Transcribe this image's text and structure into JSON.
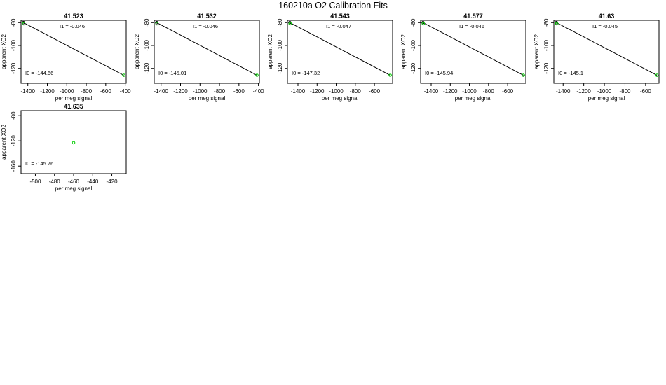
{
  "figure_title": "160210a   O2 Calibration Fits",
  "chart_data": [
    {
      "type": "scatter",
      "title": "41.523",
      "xlabel": "per meg signal",
      "ylabel": "apparent XO2",
      "xlim": [
        -1470,
        -390
      ],
      "ylim": [
        -133,
        -78
      ],
      "xticks": [
        -1400,
        -1200,
        -1000,
        -800,
        -600,
        -400
      ],
      "yticks": [
        -80,
        -100,
        -120
      ],
      "points": [
        {
          "x": -1445,
          "y": -80,
          "color": "#000000"
        },
        {
          "x": -1442,
          "y": -81,
          "color": "#00cc00"
        },
        {
          "x": -415,
          "y": -126,
          "color": "#00cc00"
        }
      ],
      "fit_line": {
        "x": [
          -1445,
          -415
        ],
        "y": [
          -80,
          -126
        ]
      },
      "annotations": {
        "i1": "I1 =  -0.046",
        "i0": "I0 =  -144.66"
      }
    },
    {
      "type": "scatter",
      "title": "41.532",
      "xlabel": "per meg signal",
      "ylabel": "apparent XO2",
      "xlim": [
        -1470,
        -390
      ],
      "ylim": [
        -133,
        -78
      ],
      "xticks": [
        -1400,
        -1200,
        -1000,
        -800,
        -600,
        -400
      ],
      "yticks": [
        -80,
        -100,
        -120
      ],
      "points": [
        {
          "x": -1445,
          "y": -80,
          "color": "#000000"
        },
        {
          "x": -1442,
          "y": -81,
          "color": "#00cc00"
        },
        {
          "x": -415,
          "y": -126,
          "color": "#00cc00"
        }
      ],
      "fit_line": {
        "x": [
          -1445,
          -415
        ],
        "y": [
          -80,
          -126
        ]
      },
      "annotations": {
        "i1": "I1 =  -0.046",
        "i0": "I0 =  -145.01"
      }
    },
    {
      "type": "scatter",
      "title": "41.543",
      "xlabel": "per meg signal",
      "ylabel": "apparent XO2",
      "xlim": [
        -1510,
        -410
      ],
      "ylim": [
        -133,
        -78
      ],
      "xticks": [
        -1400,
        -1200,
        -1000,
        -800,
        -600
      ],
      "yticks": [
        -80,
        -100,
        -120
      ],
      "points": [
        {
          "x": -1485,
          "y": -80,
          "color": "#000000"
        },
        {
          "x": -1482,
          "y": -81,
          "color": "#00cc00"
        },
        {
          "x": -435,
          "y": -126,
          "color": "#00cc00"
        }
      ],
      "fit_line": {
        "x": [
          -1485,
          -435
        ],
        "y": [
          -80,
          -126
        ]
      },
      "annotations": {
        "i1": "I1 =  -0.047",
        "i0": "I0 =  -147.32"
      }
    },
    {
      "type": "scatter",
      "title": "41.577",
      "xlabel": "per meg signal",
      "ylabel": "apparent XO2",
      "xlim": [
        -1510,
        -410
      ],
      "ylim": [
        -133,
        -78
      ],
      "xticks": [
        -1400,
        -1200,
        -1000,
        -800,
        -600
      ],
      "yticks": [
        -80,
        -100,
        -120
      ],
      "points": [
        {
          "x": -1485,
          "y": -80,
          "color": "#000000"
        },
        {
          "x": -1482,
          "y": -81,
          "color": "#00cc00"
        },
        {
          "x": -435,
          "y": -126,
          "color": "#00cc00"
        }
      ],
      "fit_line": {
        "x": [
          -1485,
          -435
        ],
        "y": [
          -80,
          -126
        ]
      },
      "annotations": {
        "i1": "I1 =  -0.046",
        "i0": "I0 =  -145.94"
      }
    },
    {
      "type": "scatter",
      "title": "41.63",
      "xlabel": "per meg signal",
      "ylabel": "apparent XO2",
      "xlim": [
        -1490,
        -470
      ],
      "ylim": [
        -133,
        -78
      ],
      "xticks": [
        -1400,
        -1200,
        -1000,
        -800,
        -600
      ],
      "yticks": [
        -80,
        -100,
        -120
      ],
      "points": [
        {
          "x": -1465,
          "y": -80,
          "color": "#000000"
        },
        {
          "x": -1462,
          "y": -81,
          "color": "#00cc00"
        },
        {
          "x": -490,
          "y": -126,
          "color": "#00cc00"
        }
      ],
      "fit_line": {
        "x": [
          -1465,
          -490
        ],
        "y": [
          -80,
          -126
        ]
      },
      "annotations": {
        "i1": "I1 =  -0.045",
        "i0": "I0 =  -145.1"
      }
    },
    {
      "type": "scatter",
      "title": "41.635",
      "xlabel": "per meg signal",
      "ylabel": "apparent XO2",
      "xlim": [
        -515,
        -405
      ],
      "ylim": [
        -172,
        -72
      ],
      "xticks": [
        -500,
        -480,
        -460,
        -440,
        -420
      ],
      "yticks": [
        -80,
        -120,
        -160
      ],
      "points": [
        {
          "x": -460,
          "y": -123,
          "color": "#00cc00"
        }
      ],
      "fit_line": null,
      "annotations": {
        "i1": "",
        "i0": "I0 =  -145.76"
      }
    }
  ]
}
